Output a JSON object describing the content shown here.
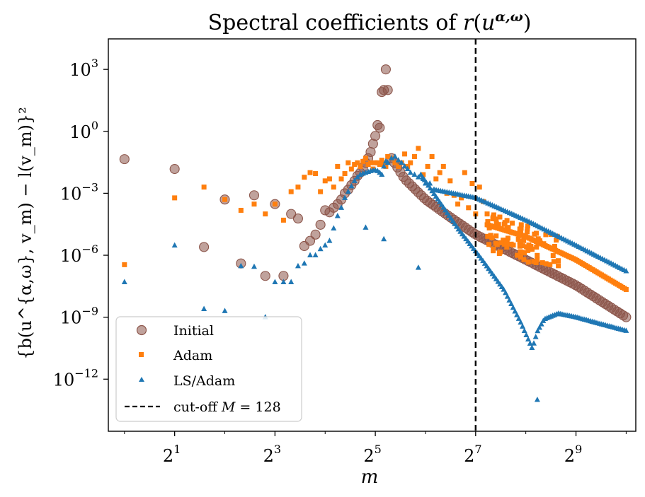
{
  "chart_data": {
    "type": "scatter",
    "title": "Spectral coefficients of r(u^{α,ω})",
    "title_parts": {
      "pre": "Spectral coefficients of ",
      "r": "r",
      "open": "(",
      "u": "u",
      "sup": "α,ω",
      "close": ")"
    },
    "xlabel": "m",
    "ylabel": "{b(u^{α,ω}, v_m) − l(v_m)}²",
    "ylabel_text": "{b(u^{α,ω}, v_m) − l(v_m)}²",
    "x_scale": "log2",
    "y_scale": "log10",
    "xlim": [
      0.8,
      1170
    ],
    "ylim": [
      3e-15,
      30000.0
    ],
    "xticks": [
      {
        "value": 2,
        "base": "2",
        "exp": "1"
      },
      {
        "value": 8,
        "base": "2",
        "exp": "3"
      },
      {
        "value": 32,
        "base": "2",
        "exp": "5"
      },
      {
        "value": 128,
        "base": "2",
        "exp": "7"
      },
      {
        "value": 512,
        "base": "2",
        "exp": "9"
      }
    ],
    "yticks": [
      {
        "value": 1000.0,
        "base": "10",
        "exp": "3"
      },
      {
        "value": 1.0,
        "base": "10",
        "exp": "0"
      },
      {
        "value": 0.001,
        "base": "10",
        "exp": "−3"
      },
      {
        "value": 1e-06,
        "base": "10",
        "exp": "−6"
      },
      {
        "value": 1e-09,
        "base": "10",
        "exp": "−9"
      },
      {
        "value": 1e-12,
        "base": "10",
        "exp": "−12"
      }
    ],
    "grid": false,
    "legend_position": "lower-left",
    "cutoff": {
      "x": 128,
      "label_pre": "cut-off ",
      "label_var": "M",
      "label_eq": " = ",
      "label_val": "128",
      "color": "#000000",
      "style": "dashed"
    },
    "series": [
      {
        "name": "Initial",
        "marker": "circle",
        "color": "#8c564b",
        "opacity": 0.55,
        "x": [
          1,
          2,
          3,
          4,
          5,
          6,
          7,
          8,
          9,
          10,
          11,
          12,
          13,
          14,
          15,
          16,
          17,
          18,
          19,
          20,
          21,
          22,
          23,
          24,
          25,
          26,
          27,
          28,
          29,
          30,
          31,
          32,
          33,
          34,
          35,
          36,
          37,
          38
        ],
        "y": [
          0.045,
          0.015,
          2.5e-06,
          0.0005,
          4e-07,
          0.0008,
          1e-07,
          0.0003,
          1e-07,
          0.0001,
          6e-05,
          2.8e-06,
          5e-06,
          1e-05,
          3e-05,
          0.00015,
          0.00012,
          0.0002,
          0.0003,
          0.0005,
          0.001,
          0.0015,
          0.0025,
          0.004,
          0.007,
          0.01,
          0.018,
          0.03,
          0.05,
          0.1,
          0.25,
          0.6,
          2.0,
          1.5,
          80,
          100,
          1000,
          100
        ],
        "tail_approx": {
          "from_x": 40,
          "to_x": 1024,
          "points": 80,
          "segments": [
            {
              "x": 40,
              "y": 0.05
            },
            {
              "x": 48,
              "y": 0.005
            },
            {
              "x": 64,
              "y": 0.0005
            },
            {
              "x": 90,
              "y": 7e-05
            },
            {
              "x": 128,
              "y": 1e-05
            },
            {
              "x": 256,
              "y": 6e-07
            },
            {
              "x": 512,
              "y": 3.5e-08
            },
            {
              "x": 1024,
              "y": 1e-09
            }
          ]
        }
      },
      {
        "name": "Adam",
        "marker": "square",
        "color": "#ff7f0e",
        "opacity": 1,
        "x": [
          1,
          2,
          3,
          4,
          5,
          6,
          7,
          8,
          9,
          10,
          11,
          12,
          13,
          14,
          15,
          16,
          17,
          18,
          19,
          20,
          21,
          22,
          23,
          24,
          25,
          26,
          27,
          28,
          29,
          30,
          31,
          32,
          33,
          34,
          35,
          36,
          37,
          38,
          40,
          42,
          44,
          46,
          48,
          50,
          52,
          55,
          58,
          62,
          66,
          70,
          74,
          78,
          82,
          86,
          90,
          95,
          100,
          105,
          110,
          116,
          122,
          128,
          135,
          142,
          150
        ],
        "y": [
          3.5e-07,
          0.0006,
          0.002,
          0.0005,
          0.00015,
          0.0003,
          0.0001,
          0.0003,
          5e-05,
          0.0012,
          0.002,
          0.006,
          0.01,
          0.009,
          0.0012,
          0.004,
          0.005,
          0.002,
          0.02,
          0.005,
          0.009,
          0.03,
          0.015,
          0.025,
          0.03,
          0.02,
          0.035,
          0.05,
          0.025,
          0.03,
          0.015,
          0.03,
          0.03,
          0.025,
          0.04,
          0.025,
          0.02,
          0.06,
          0.05,
          0.03,
          0.02,
          0.03,
          0.08,
          0.02,
          0.03,
          0.06,
          0.15,
          0.008,
          0.02,
          0.06,
          0.005,
          0.01,
          0.02,
          0.001,
          0.004,
          0.0008,
          0.0003,
          0.0006,
          0.01,
          0.0002,
          0.003,
          0.0001,
          0.002,
          0.0004,
          0.0001
        ],
        "scatter_band": {
          "from_x": 150,
          "to_x": 420,
          "center_from": 1.5e-05,
          "center_to": 1e-06,
          "spread_decades": 0.9
        },
        "tail_approx": {
          "from_x": 150,
          "to_x": 1024,
          "points": 80,
          "segments": [
            {
              "x": 150,
              "y": 3e-05
            },
            {
              "x": 256,
              "y": 8e-06
            },
            {
              "x": 512,
              "y": 6e-07
            },
            {
              "x": 1024,
              "y": 2.2e-08
            }
          ]
        }
      },
      {
        "name": "LS/Adam",
        "marker": "triangle",
        "color": "#1f77b4",
        "opacity": 1,
        "x": [
          1,
          2,
          3,
          4,
          5,
          6,
          7,
          8,
          9,
          10,
          11,
          12,
          13,
          14,
          15,
          16,
          17,
          18,
          19,
          20,
          21,
          22,
          23,
          24,
          25,
          26,
          27,
          28,
          29,
          30,
          31,
          32,
          33,
          34,
          35,
          36,
          37,
          38,
          40,
          42,
          44,
          46,
          48,
          50,
          52,
          55,
          58,
          62,
          64,
          68,
          72
        ],
        "y": [
          5e-08,
          3e-06,
          2.5e-09,
          2e-09,
          3e-07,
          2.8e-07,
          1e-09,
          5e-08,
          5e-08,
          5e-08,
          3e-07,
          4e-07,
          1e-06,
          1e-06,
          2e-06,
          3e-06,
          5e-06,
          2e-05,
          8e-05,
          0.0002,
          0.0006,
          0.0012,
          0.0022,
          0.004,
          0.006,
          0.008,
          0.009,
          0.01,
          0.011,
          0.012,
          0.013,
          0.013,
          0.012,
          0.01,
          0.008,
          0.02,
          0.035,
          0.03,
          0.05,
          0.06,
          0.04,
          0.03,
          0.02,
          0.015,
          0.01,
          0.008,
          0.006,
          0.005,
          0.003,
          0.003,
          0.0015
        ],
        "outliers": [
          {
            "x": 28,
            "y": 2.2e-05
          },
          {
            "x": 36,
            "y": 6e-06
          },
          {
            "x": 58,
            "y": 2.5e-07
          },
          {
            "x": 300,
            "y": 1e-13
          }
        ],
        "tail_approx": {
          "upper": {
            "from_x": 72,
            "to_x": 1024,
            "points": 90,
            "segments": [
              {
                "x": 72,
                "y": 0.0015
              },
              {
                "x": 128,
                "y": 0.0006
              },
              {
                "x": 256,
                "y": 5e-05
              },
              {
                "x": 512,
                "y": 3e-06
              },
              {
                "x": 1024,
                "y": 1.7e-07
              }
            ]
          },
          "lower": {
            "from_x": 60,
            "to_x": 1024,
            "points": 110,
            "segments": [
              {
                "x": 60,
                "y": 0.008
              },
              {
                "x": 100,
                "y": 2e-05
              },
              {
                "x": 140,
                "y": 6e-07
              },
              {
                "x": 190,
                "y": 2e-08
              },
              {
                "x": 240,
                "y": 5e-10
              },
              {
                "x": 280,
                "y": 3e-11
              },
              {
                "x": 300,
                "y": 2e-10
              },
              {
                "x": 330,
                "y": 8e-10
              },
              {
                "x": 400,
                "y": 1.5e-09
              },
              {
                "x": 512,
                "y": 1e-09
              },
              {
                "x": 700,
                "y": 5e-10
              },
              {
                "x": 1024,
                "y": 2.2e-10
              }
            ]
          }
        }
      }
    ]
  }
}
